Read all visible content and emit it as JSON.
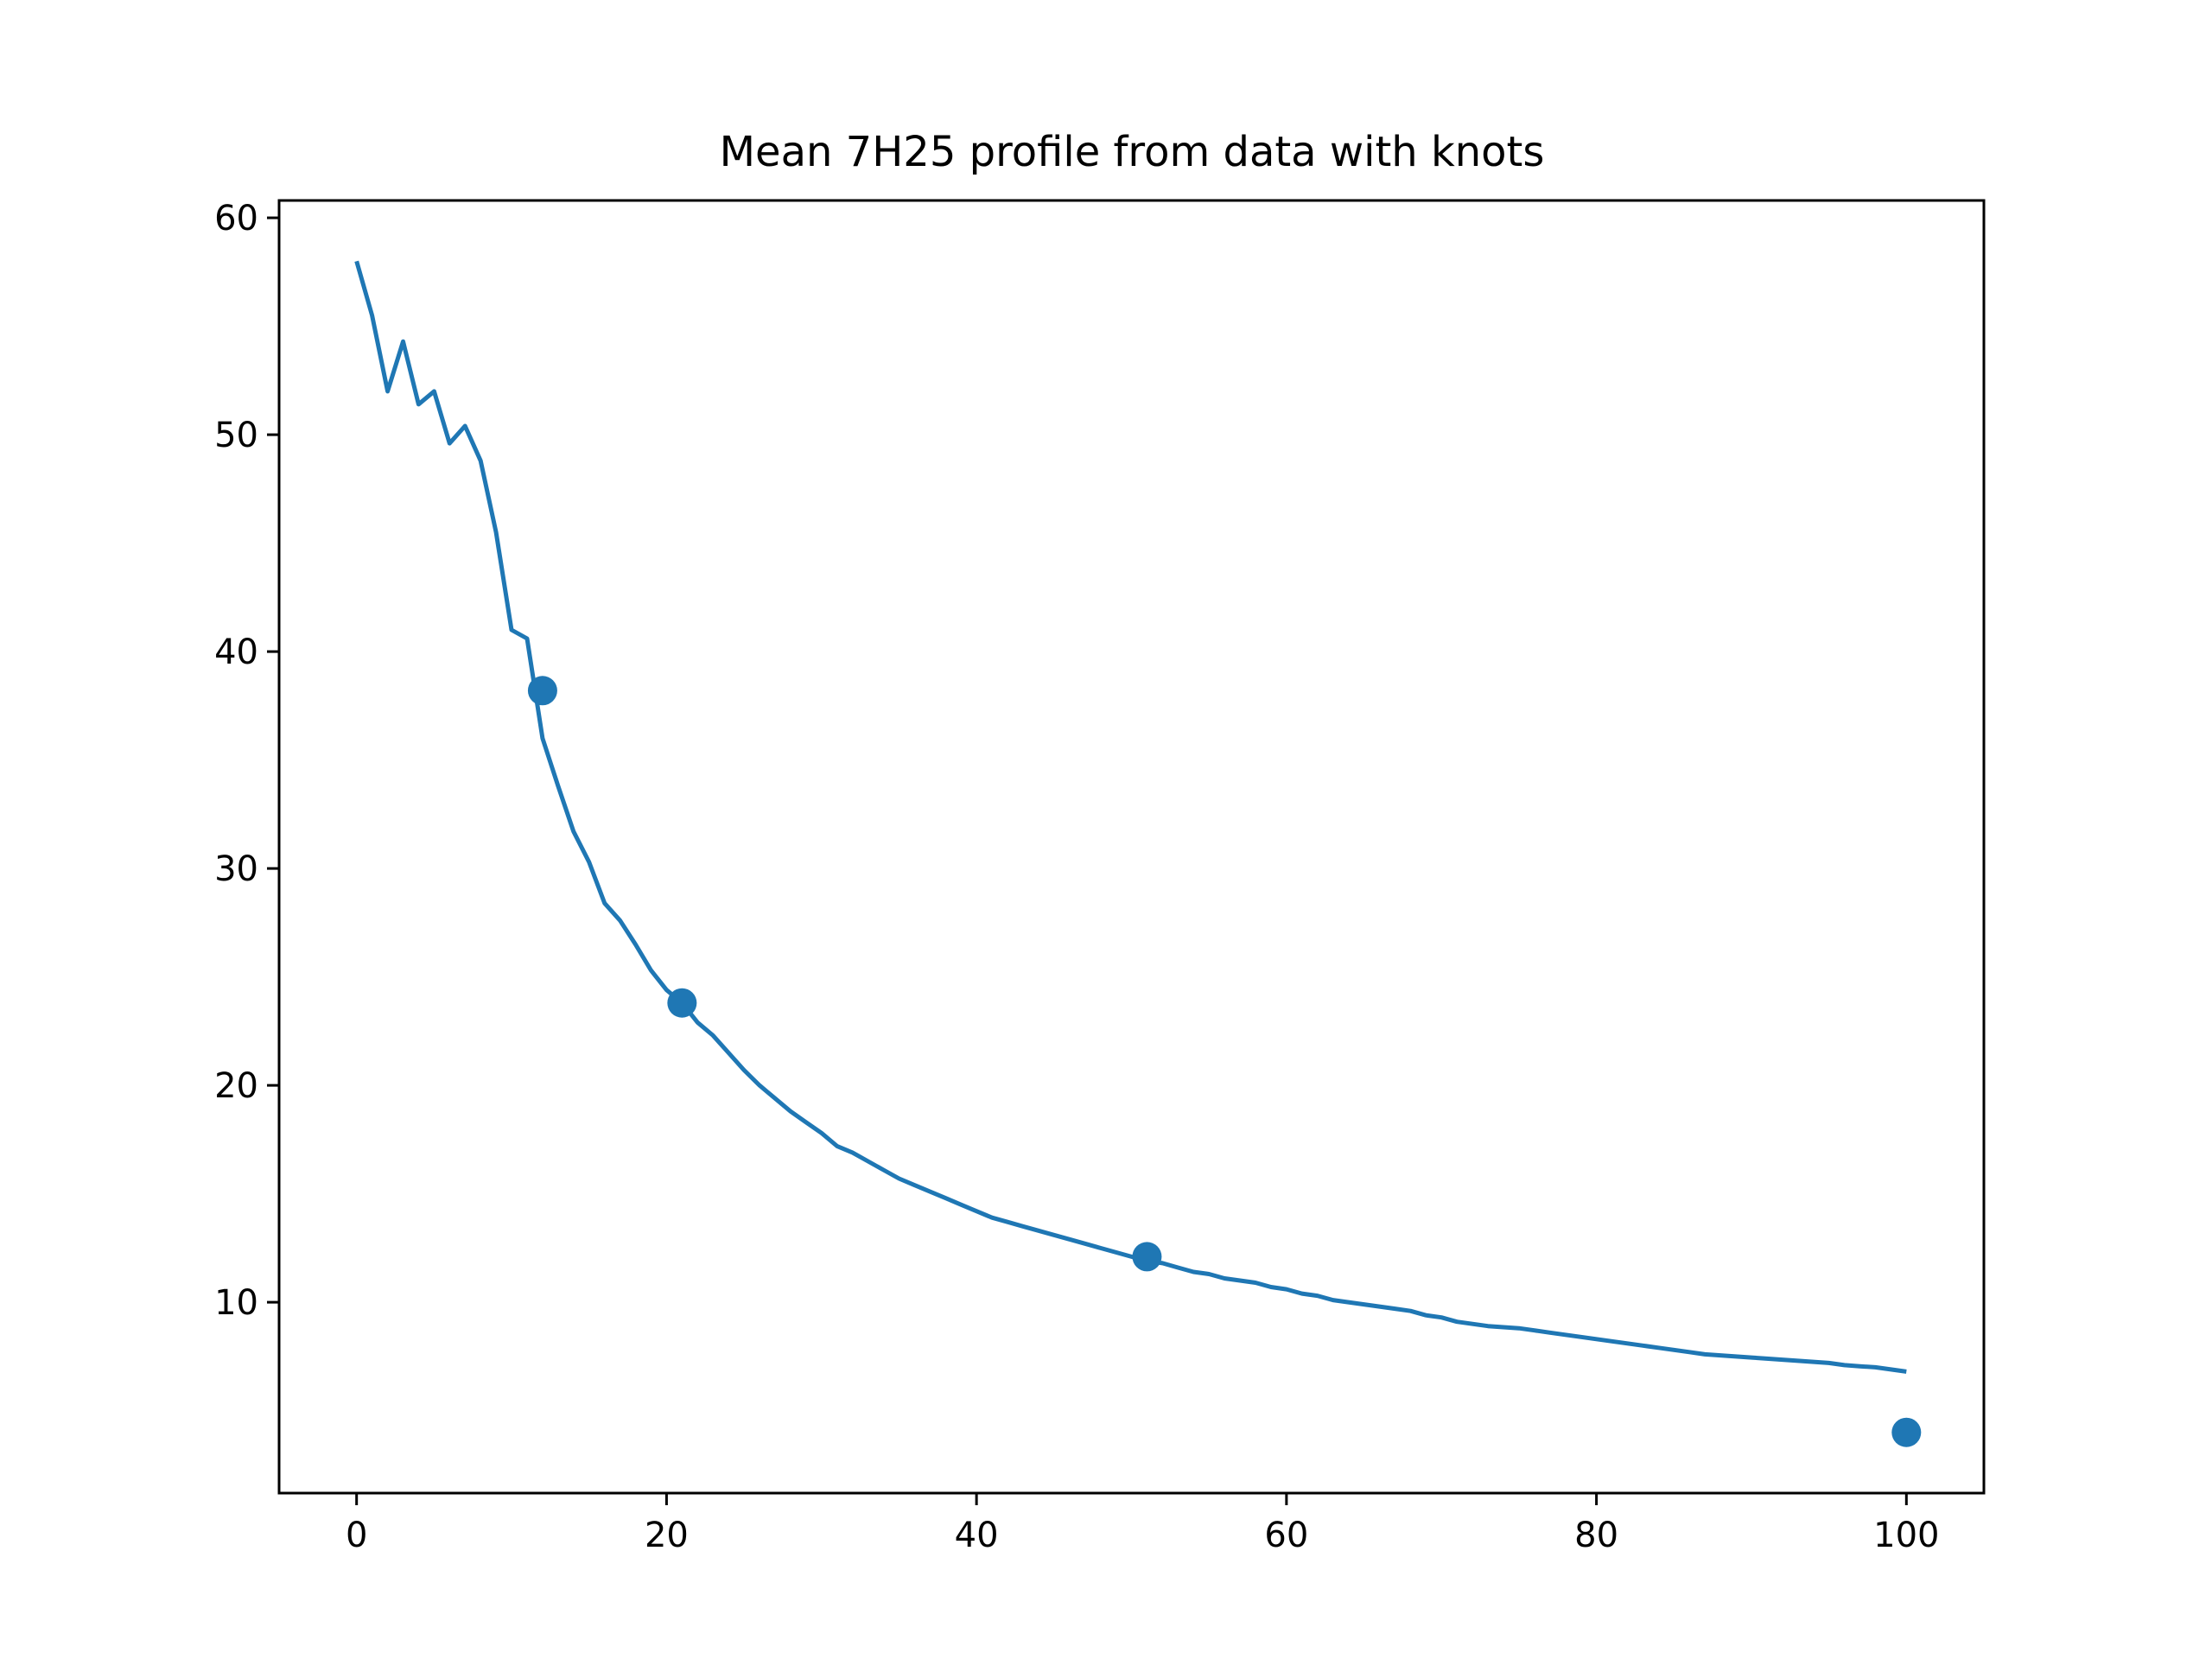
{
  "chart_data": {
    "type": "line",
    "title": "Mean 7H25 profile from data with knots",
    "xlabel": "",
    "ylabel": "",
    "xlim": [
      -5,
      105
    ],
    "ylim": [
      1.2,
      60.8
    ],
    "x_ticks": [
      0,
      20,
      40,
      60,
      80,
      100
    ],
    "y_ticks": [
      10,
      20,
      30,
      40,
      50,
      60
    ],
    "grid": false,
    "series_color": "#1f77b4",
    "series": [
      {
        "type": "line",
        "x": [
          0,
          1,
          2,
          3,
          4,
          5,
          6,
          7,
          8,
          9,
          10,
          11,
          12,
          13,
          14,
          15,
          16,
          17,
          18,
          19,
          20,
          21,
          22,
          23,
          24,
          25,
          26,
          27,
          28,
          29,
          30,
          31,
          32,
          33,
          34,
          35,
          36,
          37,
          38,
          39,
          40,
          41,
          42,
          43,
          44,
          45,
          46,
          47,
          48,
          49,
          50,
          51,
          52,
          53,
          54,
          55,
          56,
          57,
          58,
          59,
          60,
          61,
          62,
          63,
          64,
          65,
          66,
          67,
          68,
          69,
          70,
          71,
          72,
          73,
          74,
          75,
          76,
          77,
          78,
          79,
          80,
          81,
          82,
          83,
          84,
          85,
          86,
          87,
          88,
          89,
          90,
          91,
          92,
          93,
          94,
          95,
          96,
          97,
          98,
          99,
          100
        ],
        "y": [
          58.0,
          55.5,
          52.0,
          54.3,
          51.4,
          52.0,
          49.6,
          50.4,
          48.8,
          45.5,
          41.0,
          40.6,
          36.0,
          33.8,
          31.7,
          30.3,
          28.4,
          27.6,
          26.5,
          25.3,
          24.4,
          23.8,
          22.9,
          22.3,
          21.5,
          20.7,
          20.0,
          19.4,
          18.8,
          18.3,
          17.8,
          17.2,
          16.9,
          16.5,
          16.1,
          15.7,
          15.4,
          15.1,
          14.8,
          14.5,
          14.2,
          13.9,
          13.7,
          13.5,
          13.3,
          13.1,
          12.9,
          12.7,
          12.5,
          12.3,
          12.1,
          11.9,
          11.8,
          11.6,
          11.4,
          11.3,
          11.1,
          11.0,
          10.9,
          10.7,
          10.6,
          10.4,
          10.3,
          10.1,
          10.0,
          9.9,
          9.8,
          9.7,
          9.6,
          9.4,
          9.3,
          9.1,
          9.0,
          8.9,
          8.85,
          8.8,
          8.7,
          8.6,
          8.5,
          8.4,
          8.3,
          8.2,
          8.1,
          8.0,
          7.9,
          7.8,
          7.7,
          7.6,
          7.55,
          7.5,
          7.45,
          7.4,
          7.35,
          7.3,
          7.25,
          7.2,
          7.1,
          7.05,
          7.0,
          6.9,
          6.8
        ]
      },
      {
        "type": "scatter",
        "x": [
          12,
          21,
          51,
          100
        ],
        "y": [
          38.2,
          23.8,
          12.1,
          4.0
        ]
      }
    ]
  }
}
